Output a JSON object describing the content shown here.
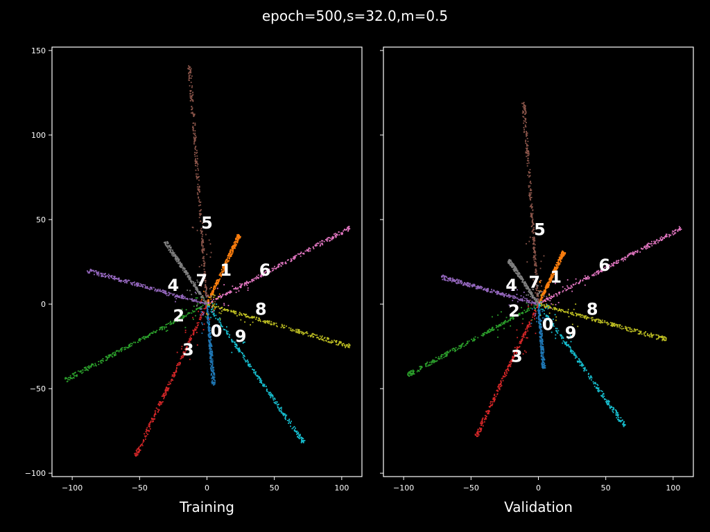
{
  "figure": {
    "title": "epoch=500,s=32.0,m=0.5",
    "background": "#000000",
    "foreground": "#ffffff"
  },
  "chart_data": [
    {
      "type": "scatter",
      "xlabel": "Training",
      "ylabel": "",
      "xlim": [
        -115,
        115
      ],
      "ylim": [
        -102,
        152
      ],
      "xticks": [
        -100,
        -50,
        0,
        50,
        100
      ],
      "yticks": [
        -100,
        -50,
        0,
        50,
        100,
        150
      ],
      "yticklabels_visible": true,
      "series": [
        {
          "label": "0",
          "color": "#1f77b4",
          "end": [
            5,
            -48
          ],
          "label_pos": [
            7,
            -16
          ]
        },
        {
          "label": "1",
          "color": "#ff7f0e",
          "end": [
            24,
            41
          ],
          "label_pos": [
            14,
            20
          ]
        },
        {
          "label": "2",
          "color": "#2ca02c",
          "end": [
            -105,
            -45
          ],
          "label_pos": [
            -21,
            -7
          ]
        },
        {
          "label": "3",
          "color": "#d62728",
          "end": [
            -53,
            -90
          ],
          "label_pos": [
            -14,
            -27
          ]
        },
        {
          "label": "4",
          "color": "#9467bd",
          "end": [
            -89,
            20
          ],
          "label_pos": [
            -25,
            11
          ]
        },
        {
          "label": "5",
          "color": "#8c564b",
          "end": [
            -13,
            141
          ],
          "label_pos": [
            0,
            48
          ]
        },
        {
          "label": "6",
          "color": "#e377c2",
          "end": [
            106,
            45
          ],
          "label_pos": [
            43,
            20
          ]
        },
        {
          "label": "7",
          "color": "#7f7f7f",
          "end": [
            -31,
            37
          ],
          "label_pos": [
            -4,
            14
          ]
        },
        {
          "label": "8",
          "color": "#bcbd22",
          "end": [
            106,
            -25
          ],
          "label_pos": [
            40,
            -3
          ]
        },
        {
          "label": "9",
          "color": "#17becf",
          "end": [
            72,
            -82
          ],
          "label_pos": [
            25,
            -19
          ]
        }
      ]
    },
    {
      "type": "scatter",
      "xlabel": "Validation",
      "ylabel": "",
      "xlim": [
        -115,
        115
      ],
      "ylim": [
        -102,
        152
      ],
      "xticks": [
        -100,
        -50,
        0,
        50,
        100
      ],
      "yticks": [
        -100,
        -50,
        0,
        50,
        100,
        150
      ],
      "yticklabels_visible": false,
      "series": [
        {
          "label": "0",
          "color": "#1f77b4",
          "end": [
            4,
            -38
          ],
          "label_pos": [
            7,
            -12
          ]
        },
        {
          "label": "1",
          "color": "#ff7f0e",
          "end": [
            19,
            31
          ],
          "label_pos": [
            13,
            16
          ]
        },
        {
          "label": "2",
          "color": "#2ca02c",
          "end": [
            -97,
            -42
          ],
          "label_pos": [
            -18,
            -4
          ]
        },
        {
          "label": "3",
          "color": "#d62728",
          "end": [
            -46,
            -78
          ],
          "label_pos": [
            -16,
            -31
          ]
        },
        {
          "label": "4",
          "color": "#9467bd",
          "end": [
            -72,
            16
          ],
          "label_pos": [
            -20,
            11
          ]
        },
        {
          "label": "5",
          "color": "#8c564b",
          "end": [
            -11,
            120
          ],
          "label_pos": [
            1,
            44
          ]
        },
        {
          "label": "6",
          "color": "#e377c2",
          "end": [
            106,
            45
          ],
          "label_pos": [
            49,
            23
          ]
        },
        {
          "label": "7",
          "color": "#7f7f7f",
          "end": [
            -22,
            26
          ],
          "label_pos": [
            -3,
            13
          ]
        },
        {
          "label": "8",
          "color": "#bcbd22",
          "end": [
            95,
            -21
          ],
          "label_pos": [
            40,
            -3
          ]
        },
        {
          "label": "9",
          "color": "#17becf",
          "end": [
            64,
            -72
          ],
          "label_pos": [
            24,
            -17
          ]
        }
      ]
    }
  ]
}
